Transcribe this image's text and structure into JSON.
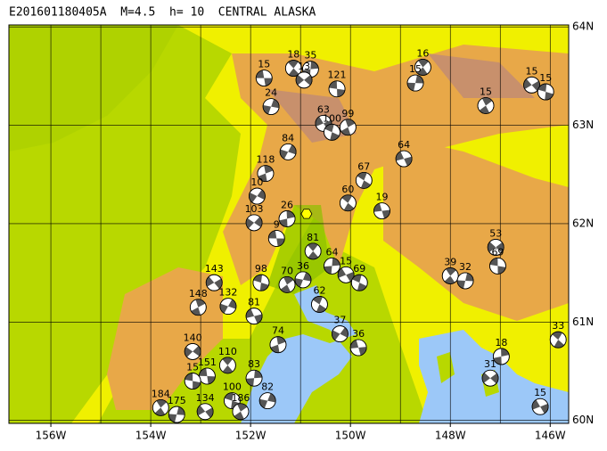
{
  "map": {
    "title": "E201601180405A  M=4.5  h= 10  CENTRAL ALASKA",
    "lonlim": [
      -156.84,
      -145.63
    ],
    "latlim": [
      59.97,
      64.02
    ],
    "lonticks": [
      {
        "value": -156,
        "label": "156W"
      },
      {
        "value": -154,
        "label": "154W"
      },
      {
        "value": -152,
        "label": "152W"
      },
      {
        "value": -150,
        "label": "150W"
      },
      {
        "value": -148,
        "label": "148W"
      },
      {
        "value": -146,
        "label": "146W"
      }
    ],
    "latticks": [
      {
        "value": 60,
        "label": "60N"
      },
      {
        "value": 61,
        "label": "61N"
      },
      {
        "value": 62,
        "label": "62N"
      },
      {
        "value": 63,
        "label": "63N"
      },
      {
        "value": 64,
        "label": "64N"
      }
    ],
    "lon_grid": [
      -156,
      -155,
      -154,
      -153,
      -152,
      -151,
      -150,
      -149,
      -148,
      -147,
      -146
    ],
    "epicenter": {
      "lon": -150.88,
      "lat": 62.1
    },
    "events": [
      {
        "depth": 15,
        "lon": -151.73,
        "lat": 63.48
      },
      {
        "depth": 18,
        "lon": -151.14,
        "lat": 63.58
      },
      {
        "depth": 35,
        "lon": -150.8,
        "lat": 63.57
      },
      {
        "depth": 13,
        "lon": -150.93,
        "lat": 63.46
      },
      {
        "depth": 121,
        "lon": -150.27,
        "lat": 63.37
      },
      {
        "depth": 16,
        "lon": -148.55,
        "lat": 63.59
      },
      {
        "depth": 15,
        "lon": -148.7,
        "lat": 63.43
      },
      {
        "depth": 15,
        "lon": -146.37,
        "lat": 63.41
      },
      {
        "depth": 15,
        "lon": -146.09,
        "lat": 63.34
      },
      {
        "depth": 15,
        "lon": -147.29,
        "lat": 63.2
      },
      {
        "depth": 24,
        "lon": -151.59,
        "lat": 63.19
      },
      {
        "depth": 63,
        "lon": -150.54,
        "lat": 63.02
      },
      {
        "depth": 100,
        "lon": -150.37,
        "lat": 62.93
      },
      {
        "depth": 99,
        "lon": -150.05,
        "lat": 62.98
      },
      {
        "depth": 84,
        "lon": -151.25,
        "lat": 62.73
      },
      {
        "depth": 64,
        "lon": -148.93,
        "lat": 62.66
      },
      {
        "depth": 67,
        "lon": -149.73,
        "lat": 62.44
      },
      {
        "depth": 118,
        "lon": -151.7,
        "lat": 62.51
      },
      {
        "depth": 10,
        "lon": -151.87,
        "lat": 62.28
      },
      {
        "depth": 19,
        "lon": -149.37,
        "lat": 62.13
      },
      {
        "depth": 60,
        "lon": -150.05,
        "lat": 62.21
      },
      {
        "depth": 26,
        "lon": -151.27,
        "lat": 62.05
      },
      {
        "depth": 103,
        "lon": -151.93,
        "lat": 62.01
      },
      {
        "depth": 9,
        "lon": -151.48,
        "lat": 61.85
      },
      {
        "depth": 81,
        "lon": -150.75,
        "lat": 61.72
      },
      {
        "depth": 64,
        "lon": -150.37,
        "lat": 61.57
      },
      {
        "depth": 53,
        "lon": -147.09,
        "lat": 61.76
      },
      {
        "depth": 69,
        "lon": -147.05,
        "lat": 61.57
      },
      {
        "depth": 39,
        "lon": -148.0,
        "lat": 61.47
      },
      {
        "depth": 32,
        "lon": -147.7,
        "lat": 61.42
      },
      {
        "depth": 143,
        "lon": -152.73,
        "lat": 61.4
      },
      {
        "depth": 98,
        "lon": -151.79,
        "lat": 61.4
      },
      {
        "depth": 70,
        "lon": -151.27,
        "lat": 61.38
      },
      {
        "depth": 36,
        "lon": -150.95,
        "lat": 61.43
      },
      {
        "depth": 15,
        "lon": -150.09,
        "lat": 61.48
      },
      {
        "depth": 69,
        "lon": -149.82,
        "lat": 61.4
      },
      {
        "depth": 148,
        "lon": -153.05,
        "lat": 61.15
      },
      {
        "depth": 132,
        "lon": -152.45,
        "lat": 61.16
      },
      {
        "depth": 81,
        "lon": -151.93,
        "lat": 61.06
      },
      {
        "depth": 62,
        "lon": -150.62,
        "lat": 61.18
      },
      {
        "depth": 74,
        "lon": -151.45,
        "lat": 60.77
      },
      {
        "depth": 37,
        "lon": -150.21,
        "lat": 60.88
      },
      {
        "depth": 36,
        "lon": -149.84,
        "lat": 60.74
      },
      {
        "depth": 33,
        "lon": -145.84,
        "lat": 60.82
      },
      {
        "depth": 18,
        "lon": -146.98,
        "lat": 60.65
      },
      {
        "depth": 140,
        "lon": -153.16,
        "lat": 60.7
      },
      {
        "depth": 151,
        "lon": -152.87,
        "lat": 60.45
      },
      {
        "depth": 110,
        "lon": -152.46,
        "lat": 60.56
      },
      {
        "depth": 83,
        "lon": -151.93,
        "lat": 60.43
      },
      {
        "depth": 31,
        "lon": -147.2,
        "lat": 60.43
      },
      {
        "depth": 15,
        "lon": -153.16,
        "lat": 60.4
      },
      {
        "depth": 184,
        "lon": -153.8,
        "lat": 60.13
      },
      {
        "depth": 175,
        "lon": -153.48,
        "lat": 60.06
      },
      {
        "depth": 134,
        "lon": -152.91,
        "lat": 60.09
      },
      {
        "depth": 100,
        "lon": -152.37,
        "lat": 60.2
      },
      {
        "depth": 186,
        "lon": -152.2,
        "lat": 60.09
      },
      {
        "depth": 82,
        "lon": -151.66,
        "lat": 60.2
      },
      {
        "depth": 15,
        "lon": -146.2,
        "lat": 60.14
      }
    ]
  }
}
